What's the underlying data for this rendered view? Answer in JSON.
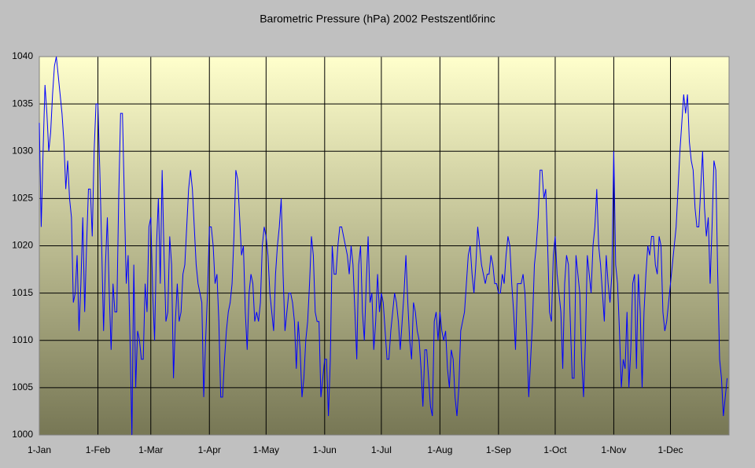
{
  "chart_data": {
    "type": "line",
    "title": "Barometric Pressure (hPa) 2002 Pestszentlőrinc",
    "color": "#0000ff",
    "xlim": [
      0,
      365
    ],
    "xticks": [
      {
        "value": 0,
        "label": "1-Jan"
      },
      {
        "value": 31,
        "label": "1-Feb"
      },
      {
        "value": 59,
        "label": "1-Mar"
      },
      {
        "value": 90,
        "label": "1-Apr"
      },
      {
        "value": 120,
        "label": "1-May"
      },
      {
        "value": 151,
        "label": "1-Jun"
      },
      {
        "value": 181,
        "label": "1-Jul"
      },
      {
        "value": 212,
        "label": "1-Aug"
      },
      {
        "value": 243,
        "label": "1-Sep"
      },
      {
        "value": 273,
        "label": "1-Oct"
      },
      {
        "value": 304,
        "label": "1-Nov"
      },
      {
        "value": 334,
        "label": "1-Dec"
      }
    ],
    "ylim": [
      1000,
      1040
    ],
    "yticks": [
      1000,
      1005,
      1010,
      1015,
      1020,
      1025,
      1030,
      1035,
      1040
    ],
    "grid": true,
    "values": [
      1033,
      1022,
      1030,
      1037,
      1034,
      1030,
      1032,
      1036,
      1039,
      1040,
      1038,
      1036,
      1034,
      1031,
      1026,
      1029,
      1025,
      1023,
      1014,
      1015,
      1019,
      1011,
      1016,
      1023,
      1013,
      1020,
      1026,
      1026,
      1021,
      1030,
      1035,
      1035,
      1028,
      1020,
      1011,
      1018,
      1023,
      1015,
      1009,
      1016,
      1013,
      1013,
      1025,
      1034,
      1034,
      1025,
      1016,
      1019,
      1010,
      1000,
      1018,
      1005,
      1011,
      1010,
      1008,
      1008,
      1016,
      1013,
      1022,
      1023,
      1015,
      1010,
      1020,
      1025,
      1016,
      1028,
      1019,
      1012,
      1013,
      1021,
      1018,
      1006,
      1012,
      1016,
      1012,
      1013,
      1017,
      1018,
      1022,
      1026,
      1028,
      1026,
      1022,
      1018,
      1016,
      1015,
      1014,
      1004,
      1010,
      1015,
      1022,
      1022,
      1020,
      1016,
      1017,
      1012,
      1004,
      1004,
      1008,
      1011,
      1013,
      1014,
      1016,
      1021,
      1028,
      1027,
      1023,
      1019,
      1020,
      1013,
      1009,
      1015,
      1017,
      1016,
      1012,
      1013,
      1012,
      1014,
      1020,
      1022,
      1021,
      1019,
      1015,
      1013,
      1011,
      1017,
      1020,
      1022,
      1025,
      1017,
      1011,
      1013,
      1015,
      1015,
      1014,
      1012,
      1007,
      1012,
      1009,
      1004,
      1006,
      1010,
      1012,
      1016,
      1021,
      1019,
      1013,
      1012,
      1012,
      1004,
      1006,
      1008,
      1008,
      1002,
      1008,
      1020,
      1017,
      1017,
      1020,
      1022,
      1022,
      1021,
      1020,
      1019,
      1017,
      1020,
      1018,
      1013,
      1008,
      1018,
      1020,
      1013,
      1010,
      1016,
      1021,
      1014,
      1015,
      1009,
      1012,
      1017,
      1013,
      1015,
      1014,
      1011,
      1008,
      1008,
      1011,
      1013,
      1015,
      1014,
      1012,
      1009,
      1012,
      1015,
      1019,
      1014,
      1010,
      1008,
      1014,
      1013,
      1011,
      1010,
      1007,
      1003,
      1009,
      1009,
      1006,
      1003,
      1002,
      1012,
      1013,
      1010,
      1013,
      1011,
      1010,
      1011,
      1007,
      1005,
      1009,
      1008,
      1004,
      1002,
      1005,
      1011,
      1012,
      1013,
      1016,
      1019,
      1020,
      1017,
      1015,
      1018,
      1022,
      1020,
      1018,
      1017,
      1016,
      1017,
      1017,
      1019,
      1018,
      1016,
      1016,
      1015,
      1015,
      1017,
      1016,
      1019,
      1021,
      1020,
      1016,
      1013,
      1009,
      1016,
      1016,
      1016,
      1017,
      1015,
      1010,
      1004,
      1008,
      1012,
      1018,
      1020,
      1023,
      1028,
      1028,
      1025,
      1026,
      1020,
      1013,
      1012,
      1019,
      1021,
      1017,
      1015,
      1013,
      1007,
      1016,
      1019,
      1018,
      1012,
      1006,
      1006,
      1019,
      1017,
      1015,
      1008,
      1004,
      1010,
      1019,
      1017,
      1015,
      1020,
      1022,
      1026,
      1020,
      1018,
      1015,
      1012,
      1019,
      1016,
      1014,
      1017,
      1030,
      1018,
      1016,
      1011,
      1005,
      1008,
      1007,
      1013,
      1005,
      1009,
      1016,
      1017,
      1007,
      1017,
      1013,
      1005,
      1013,
      1017,
      1020,
      1019,
      1021,
      1021,
      1018,
      1017,
      1021,
      1020,
      1013,
      1011,
      1012,
      1014,
      1016,
      1018,
      1020,
      1022,
      1026,
      1030,
      1033,
      1036,
      1034,
      1036,
      1031,
      1029,
      1028,
      1024,
      1022,
      1022,
      1026,
      1030,
      1024,
      1021,
      1023,
      1016,
      1022,
      1029,
      1028,
      1017,
      1008,
      1006,
      1002,
      1004,
      1006
    ]
  }
}
